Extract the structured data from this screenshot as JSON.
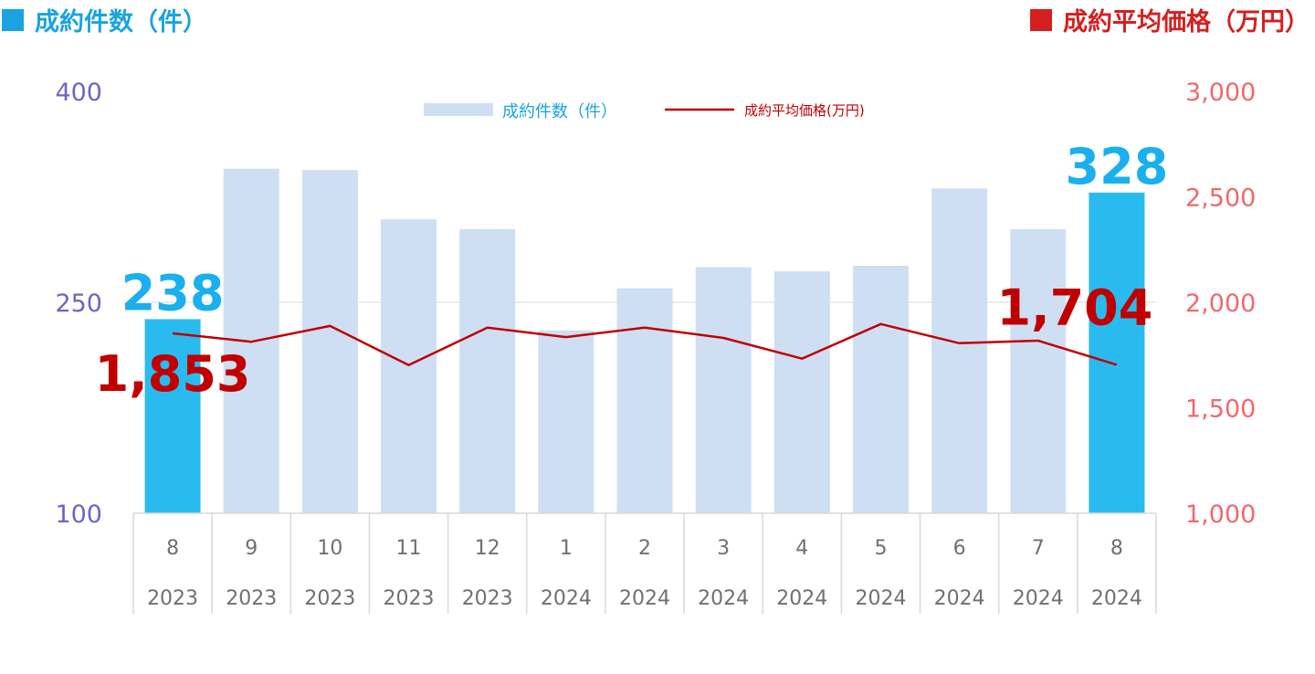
{
  "header": {
    "left_title": "成約件数（件）",
    "right_title": "成約平均価格（万円）"
  },
  "colors": {
    "bar_normal": "#cfdff3",
    "bar_highlight": "#29bbef",
    "line": "#c00000",
    "left_axis": "#6b66c4",
    "right_axis": "#f0696b"
  },
  "chart_data": {
    "type": "bar",
    "title": "",
    "categories": [
      "8",
      "9",
      "10",
      "11",
      "12",
      "1",
      "2",
      "3",
      "4",
      "5",
      "6",
      "7",
      "8"
    ],
    "category_years": [
      "2023",
      "2023",
      "2023",
      "2023",
      "2023",
      "2024",
      "2024",
      "2024",
      "2024",
      "2024",
      "2024",
      "2024",
      "2024"
    ],
    "highlight_indices": [
      0,
      12
    ],
    "series": [
      {
        "name": "成約件数（件）",
        "type": "bar",
        "axis": "left",
        "values": [
          238,
          345,
          344,
          309,
          302,
          230,
          260,
          275,
          272,
          276,
          331,
          302,
          328
        ]
      },
      {
        "name": "成約平均価格(万円)",
        "type": "line",
        "axis": "right",
        "values": [
          1853,
          1813,
          1888,
          1702,
          1880,
          1835,
          1880,
          1831,
          1733,
          1897,
          1806,
          1818,
          1704
        ]
      }
    ],
    "left_axis": {
      "ylim": [
        100,
        400
      ],
      "ticks": [
        "100",
        "250",
        "400"
      ]
    },
    "right_axis": {
      "ylim": [
        1000,
        3000
      ],
      "ticks": [
        "1,000",
        "1,500",
        "2,000",
        "2,500",
        "3,000"
      ]
    },
    "data_labels": [
      {
        "series": 0,
        "index": 0,
        "text": "238"
      },
      {
        "series": 0,
        "index": 12,
        "text": "328"
      },
      {
        "series": 1,
        "index": 0,
        "text": "1,853"
      },
      {
        "series": 1,
        "index": 12,
        "text": "1,704"
      }
    ],
    "legend_position": "top-center",
    "grid": "horizontal at midpoint"
  }
}
